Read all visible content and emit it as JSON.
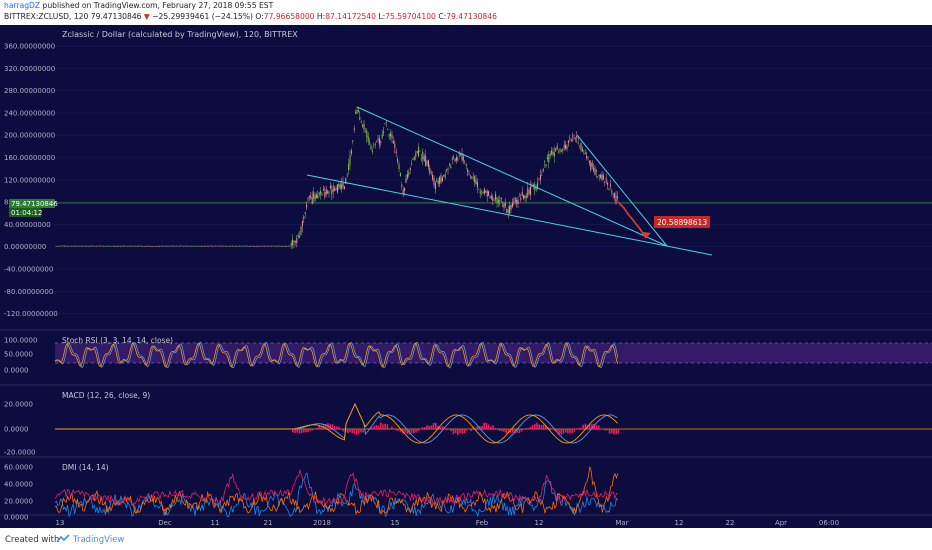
{
  "header": {
    "line1": {
      "user": "harragDZ",
      "text": "published on TradingView.com, February 27, 2018 09:55 EST"
    },
    "line2": {
      "symbol": "BITTREX:ZCLUSD, 120",
      "price": "79.47130846",
      "change": "−25.29939461 (−24.15%)",
      "o_label": "O:",
      "o_val": "77.96658000",
      "h_label": "H:",
      "h_val": "87.14172540",
      "l_label": "L:",
      "l_val": "75.59704100",
      "c_label": "C:",
      "c_val": "79.47130846"
    }
  },
  "main_pane": {
    "title": "Zclassic / Dollar (calculated by TradingView), 120, BITTREX",
    "y_ticks": [
      "360.00000000",
      "320.00000000",
      "280.00000000",
      "240.00000000",
      "200.00000000",
      "160.00000000",
      "120.00000000",
      "80.00000000",
      "40.00000000",
      "0.00000000",
      "-40.00000000",
      "-80.00000000",
      "-120.00000000"
    ],
    "price_tag": "79.47130846",
    "countdown": "01:04:12",
    "target_tag": "20.58898613"
  },
  "stoch_pane": {
    "label": "Stoch RSI (3, 3, 14, 14, close)",
    "ticks": [
      "100.0000",
      "50.0000",
      "0.0000"
    ]
  },
  "macd_pane": {
    "label": "MACD (12, 26, close, 9)",
    "ticks": [
      "20.0000",
      "0.0000",
      "-20.0000"
    ]
  },
  "dmi_pane": {
    "label": "DMI (14, 14)",
    "ticks": [
      "60.0000",
      "40.0000",
      "20.0000",
      "0.0000"
    ]
  },
  "x_axis": {
    "labels": [
      "13",
      "Dec",
      "11",
      "21",
      "2018",
      "15",
      "Feb",
      "12",
      "Mar",
      "12",
      "22",
      "Apr",
      "06:00"
    ]
  },
  "footer": {
    "created": "Created with",
    "brand": "TradingView"
  },
  "colors": {
    "background": "#0c0c3e",
    "trendline": "#4dd0e1",
    "price_line": "#2e7d32",
    "candle_up": "#8bc34a",
    "candle_down": "#ef9a9a",
    "forecast": "#e53935"
  }
}
